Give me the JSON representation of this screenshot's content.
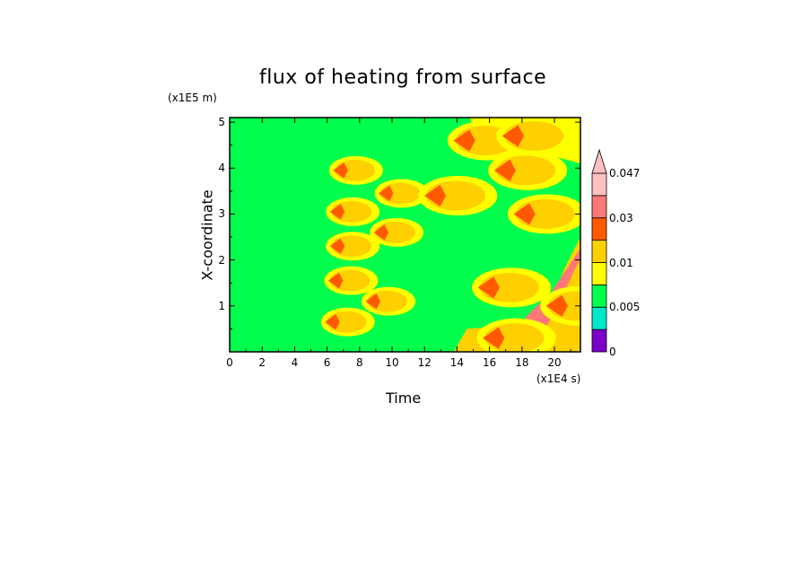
{
  "chart_data": {
    "type": "heatmap",
    "title": "flux of heating from surface",
    "xlabel": "Time",
    "ylabel": "X-coordinate",
    "x_units": "(x1E4 s)",
    "y_units": "(x1E5 m)",
    "xlim": [
      0,
      21.6
    ],
    "ylim": [
      0,
      5.1
    ],
    "x_ticks": [
      "0",
      "2",
      "4",
      "6",
      "8",
      "10",
      "12",
      "14",
      "16",
      "18",
      "20"
    ],
    "y_ticks": [
      "1",
      "2",
      "3",
      "4",
      "5"
    ],
    "colorbar": {
      "labels": [
        "0",
        "0.005",
        "0.01",
        "0.03",
        "0.047"
      ],
      "levels": [
        0,
        0.0025,
        0.005,
        0.0075,
        0.01,
        0.02,
        0.03,
        0.04,
        0.047
      ],
      "colors": [
        "#7a00c8",
        "#00e8c8",
        "#00ff4c",
        "#ffff00",
        "#ffd000",
        "#ff5a00",
        "#ff7878",
        "#ffc0c0"
      ],
      "extend": "max"
    },
    "background_level_color": "#00ff4c",
    "features": [
      {
        "kind": "warm-patch",
        "t": 6.7,
        "x": 0.65,
        "color": "#ffd000"
      },
      {
        "kind": "warm-patch",
        "t": 6.9,
        "x": 1.55,
        "color": "#ffd000"
      },
      {
        "kind": "warm-patch",
        "t": 7.0,
        "x": 2.3,
        "color": "#ffd000"
      },
      {
        "kind": "warm-patch",
        "t": 7.0,
        "x": 3.05,
        "color": "#ffd000"
      },
      {
        "kind": "warm-patch",
        "t": 7.2,
        "x": 3.95,
        "color": "#ffd000"
      },
      {
        "kind": "warm-patch",
        "t": 9.2,
        "x": 1.1,
        "color": "#ffd000"
      },
      {
        "kind": "warm-patch",
        "t": 9.7,
        "x": 2.6,
        "color": "#ffd000"
      },
      {
        "kind": "warm-patch",
        "t": 10.0,
        "x": 3.45,
        "color": "#ffd000"
      },
      {
        "kind": "warm-patch",
        "t": 13.2,
        "x": 3.4,
        "color": "#ffd000"
      },
      {
        "kind": "warm-patch",
        "t": 15.0,
        "x": 4.6,
        "color": "#ffd000"
      },
      {
        "kind": "warm-patch",
        "t": 18.0,
        "x": 4.7,
        "color": "#ffd000"
      },
      {
        "kind": "warm-patch",
        "t": 16.5,
        "x": 1.4,
        "color": "#ffd000"
      },
      {
        "kind": "warm-patch",
        "t": 16.8,
        "x": 0.3,
        "color": "#ffd000"
      },
      {
        "kind": "warm-patch",
        "t": 17.5,
        "x": 3.95,
        "color": "#ffd000"
      },
      {
        "kind": "warm-patch",
        "t": 18.7,
        "x": 3.0,
        "color": "#ffd000"
      },
      {
        "kind": "warm-patch",
        "t": 20.7,
        "x": 1.0,
        "color": "#ffd000"
      }
    ]
  }
}
